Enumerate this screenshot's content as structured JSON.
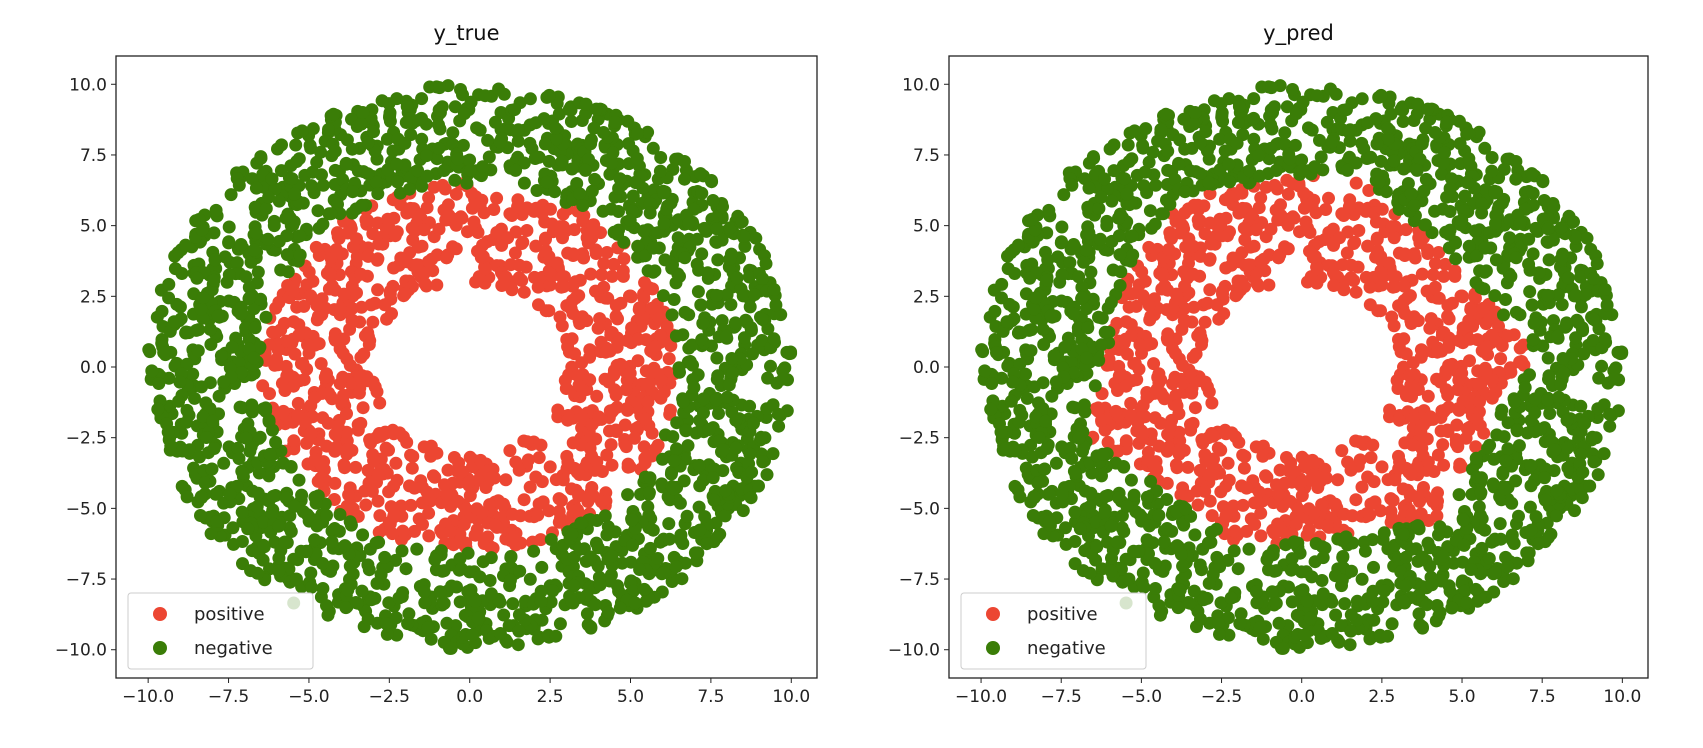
{
  "chart_data": [
    {
      "type": "scatter",
      "title": "y_true",
      "xlabel": "",
      "ylabel": "",
      "xlim": [
        -11,
        10.8
      ],
      "ylim": [
        -11,
        11
      ],
      "xticks": [
        "−10.0",
        "−7.5",
        "−5.0",
        "−2.5",
        "0.0",
        "2.5",
        "5.0",
        "7.5",
        "10.0"
      ],
      "yticks": [
        "10.0",
        "7.5",
        "5.0",
        "2.5",
        "0.0",
        "−2.5",
        "−5.0",
        "−7.5",
        "−10.0"
      ],
      "tick_values": [
        -10,
        -7.5,
        -5,
        -2.5,
        0,
        2.5,
        5,
        7.5,
        10
      ],
      "legend": {
        "placement": "lower-left",
        "entries": [
          "positive",
          "negative"
        ]
      },
      "series": [
        {
          "name": "positive",
          "color": "#ec4632",
          "rule": "radius between 3 and 6.5"
        },
        {
          "name": "negative",
          "color": "#3a7d07",
          "rule": "radius between 6.5 and 10"
        }
      ],
      "labeling": "true",
      "generation": {
        "n_points": 2600,
        "r_min": 3.0,
        "r_boundary": 6.5,
        "r_max": 10.0,
        "seed": 7
      }
    },
    {
      "type": "scatter",
      "title": "y_pred",
      "xlabel": "",
      "ylabel": "",
      "xlim": [
        -11,
        10.8
      ],
      "ylim": [
        -11,
        11
      ],
      "xticks": [
        "−10.0",
        "−7.5",
        "−5.0",
        "−2.5",
        "0.0",
        "2.5",
        "5.0",
        "7.5",
        "10.0"
      ],
      "yticks": [
        "10.0",
        "7.5",
        "5.0",
        "2.5",
        "0.0",
        "−2.5",
        "−5.0",
        "−7.5",
        "−10.0"
      ],
      "tick_values": [
        -10,
        -7.5,
        -5,
        -2.5,
        0,
        2.5,
        5,
        7.5,
        10
      ],
      "legend": {
        "placement": "lower-left",
        "entries": [
          "positive",
          "negative"
        ]
      },
      "series": [
        {
          "name": "positive",
          "color": "#ec4632",
          "rule": "inside predicted polygon boundary"
        },
        {
          "name": "negative",
          "color": "#3a7d07",
          "rule": "outside predicted polygon boundary"
        }
      ],
      "labeling": "pred",
      "pred_boundary": [
        [
          -3.5,
          6.2
        ],
        [
          1.8,
          7.0
        ],
        [
          7.3,
          0.6
        ],
        [
          4.2,
          -5.5
        ],
        [
          -1.8,
          -6.4
        ],
        [
          -6.6,
          -2.5
        ],
        [
          -5.6,
          3.2
        ]
      ],
      "generation": {
        "n_points": 2600,
        "r_min": 3.0,
        "r_boundary": 6.5,
        "r_max": 10.0,
        "seed": 7
      }
    }
  ]
}
